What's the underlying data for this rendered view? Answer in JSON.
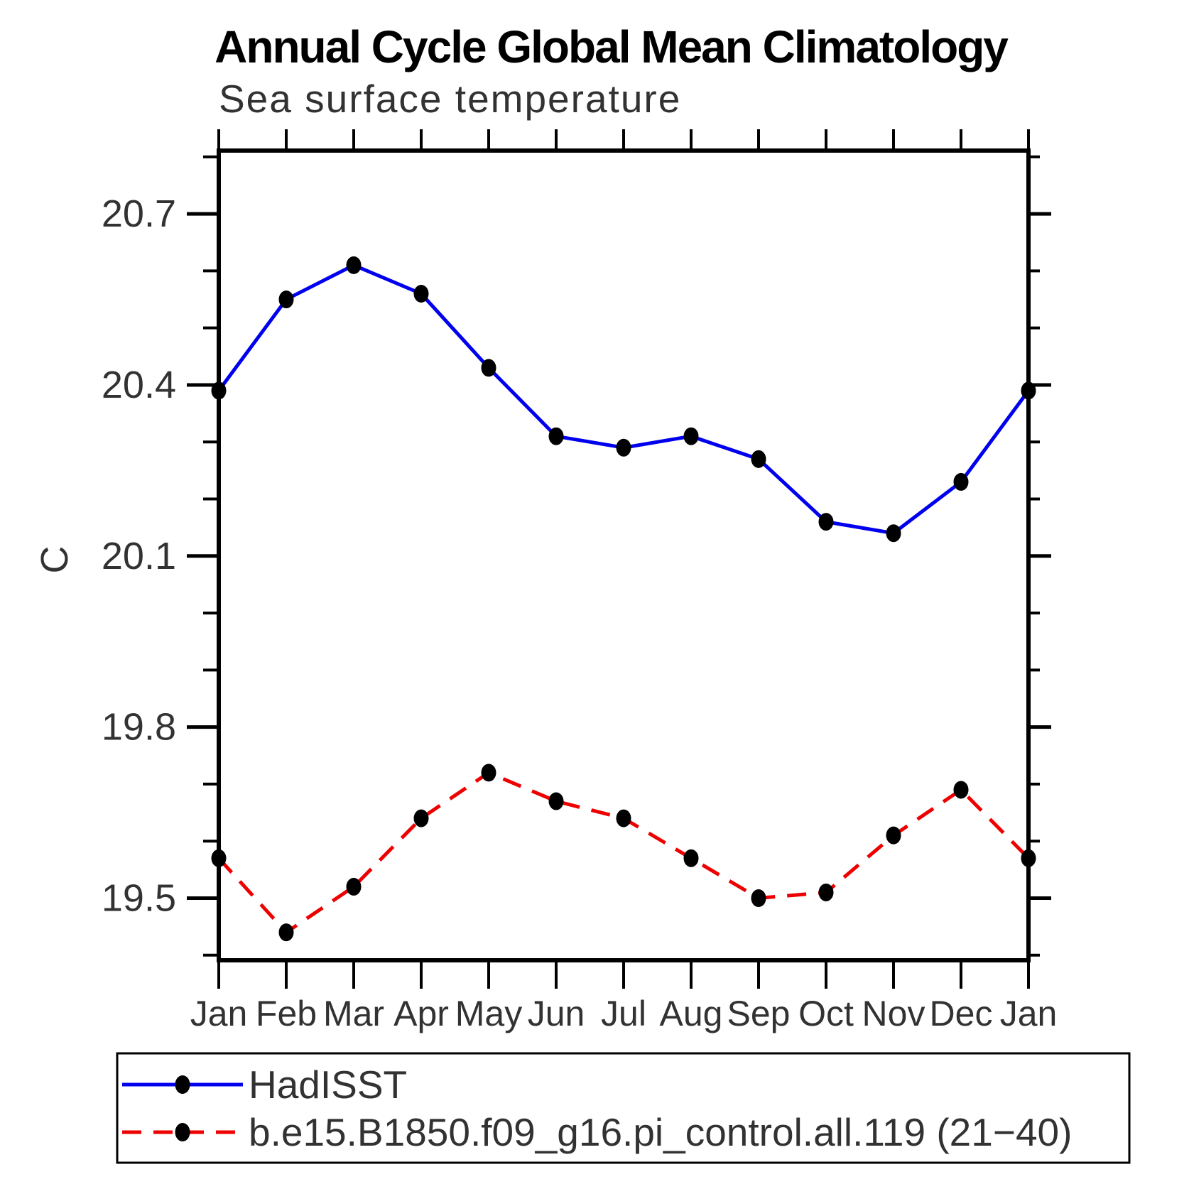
{
  "window": {
    "background": "#ffffff"
  },
  "chart_data": {
    "type": "line",
    "title": "Annual Cycle Global Mean Climatology",
    "subtitle": "Sea surface temperature",
    "ylabel": "C",
    "xlabel": "",
    "categories": [
      "Jan",
      "Feb",
      "Mar",
      "Apr",
      "May",
      "Jun",
      "Jul",
      "Aug",
      "Sep",
      "Oct",
      "Nov",
      "Dec",
      "Jan"
    ],
    "series": [
      {
        "name": "HadISST",
        "line_color": "#0000ee",
        "line_style": "solid",
        "marker_color": "#000000",
        "values": [
          20.39,
          20.55,
          20.61,
          20.56,
          20.43,
          20.31,
          20.29,
          20.31,
          20.27,
          20.16,
          20.14,
          20.23,
          20.39
        ]
      },
      {
        "name": "b.e15.B1850.f09_g16.pi_control.all.119 (21−40)",
        "line_color": "#ee0000",
        "line_style": "dashed",
        "marker_color": "#000000",
        "values": [
          19.57,
          19.44,
          19.52,
          19.64,
          19.72,
          19.67,
          19.64,
          19.57,
          19.5,
          19.51,
          19.61,
          19.69,
          19.57
        ]
      }
    ],
    "ylim": [
      19.391,
      20.811
    ],
    "yticks_major": [
      19.5,
      19.8,
      20.1,
      20.4,
      20.7
    ],
    "ytick_minor_step": 0.1,
    "ytick_label_format": "one-decimal",
    "grid": false,
    "frame": "box-with-outward-ticks",
    "legend_position": "bottom-left-box",
    "axis_color": "#000000"
  }
}
